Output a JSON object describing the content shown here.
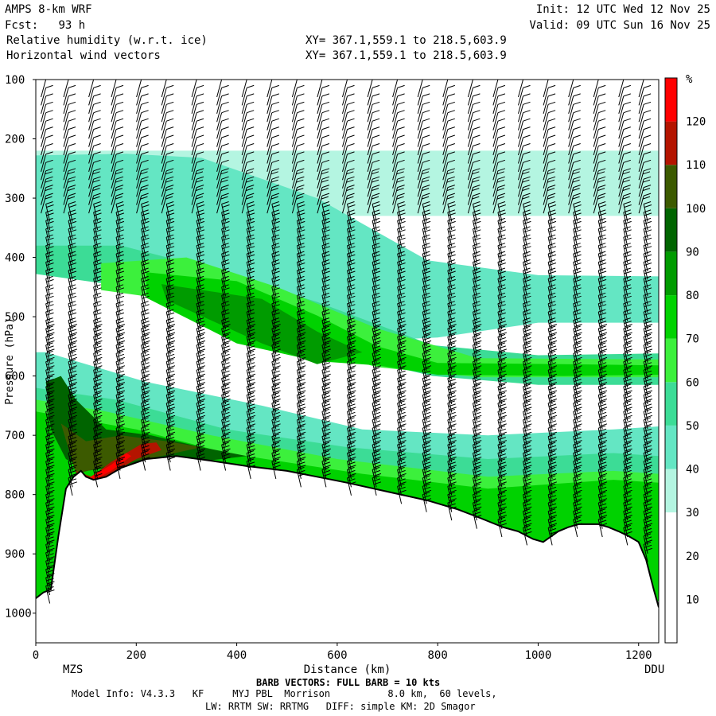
{
  "header": {
    "model": "AMPS 8-km WRF",
    "fcst_label": "Fcst:",
    "fcst_value": "93 h",
    "field1": "Relative humidity (w.r.t. ice)",
    "field2": "Horizontal wind vectors",
    "xy1": "XY= 367.1,559.1 to 218.5,603.9",
    "xy2": "XY= 367.1,559.1 to 218.5,603.9",
    "init": "Init: 12 UTC Wed 12 Nov 25",
    "valid": "Valid: 09 UTC Sun 16 Nov 25"
  },
  "footer": {
    "barb_note": "BARB VECTORS: FULL BARB = 10 kts",
    "model_info": "Model Info: V4.3.3   KF     MYJ PBL  Morrison          8.0 km,  60 levels,",
    "physics": "LW: RRTM SW: RRTMG   DIFF: simple KM: 2D Smagor"
  },
  "chart_data": {
    "type": "heatmap",
    "title": "Relative humidity (w.r.t. ice) cross-section with horizontal wind vectors",
    "xlabel": "Distance (km)",
    "ylabel": "Pressure (hPa)",
    "xlim": [
      0,
      1240
    ],
    "ylim": [
      1050,
      100
    ],
    "x_ticks": [
      0,
      200,
      400,
      600,
      800,
      1000,
      1200
    ],
    "y_ticks": [
      100,
      200,
      300,
      400,
      500,
      600,
      700,
      800,
      900,
      1000
    ],
    "endpoints": {
      "left": "MZS",
      "right": "DDU"
    },
    "colorbar": {
      "unit": "%",
      "levels": [
        10,
        20,
        30,
        40,
        50,
        60,
        70,
        80,
        90,
        100,
        110,
        120
      ],
      "colors": [
        "#ffffff",
        "#ffffff",
        "#ffffff",
        "#b4f5e1",
        "#64e6c3",
        "#3cdc96",
        "#3cf03c",
        "#00d200",
        "#009b00",
        "#006400",
        "#3c5a00",
        "#b41400",
        "#ff0000"
      ]
    },
    "terrain_hpa": [
      [
        0,
        975
      ],
      [
        15,
        965
      ],
      [
        30,
        960
      ],
      [
        45,
        870
      ],
      [
        60,
        790
      ],
      [
        75,
        770
      ],
      [
        90,
        760
      ],
      [
        100,
        770
      ],
      [
        115,
        775
      ],
      [
        140,
        770
      ],
      [
        170,
        755
      ],
      [
        220,
        740
      ],
      [
        280,
        735
      ],
      [
        350,
        743
      ],
      [
        420,
        752
      ],
      [
        500,
        760
      ],
      [
        560,
        770
      ],
      [
        620,
        780
      ],
      [
        700,
        795
      ],
      [
        780,
        810
      ],
      [
        840,
        825
      ],
      [
        880,
        838
      ],
      [
        930,
        855
      ],
      [
        960,
        862
      ],
      [
        990,
        875
      ],
      [
        1010,
        880
      ],
      [
        1040,
        862
      ],
      [
        1060,
        855
      ],
      [
        1080,
        850
      ],
      [
        1100,
        850
      ],
      [
        1120,
        850
      ],
      [
        1140,
        855
      ],
      [
        1160,
        862
      ],
      [
        1180,
        870
      ],
      [
        1200,
        880
      ],
      [
        1215,
        910
      ],
      [
        1230,
        960
      ],
      [
        1240,
        990
      ]
    ],
    "humid_layers": [
      {
        "rh": 35,
        "path_hpa": [
          [
            0,
            220
          ],
          [
            1240,
            220
          ],
          [
            1240,
            330
          ],
          [
            0,
            330
          ]
        ]
      },
      {
        "rh": 45,
        "path_hpa": [
          [
            0,
            228
          ],
          [
            180,
            225
          ],
          [
            330,
            232
          ],
          [
            560,
            300
          ],
          [
            780,
            405
          ],
          [
            1000,
            430
          ],
          [
            1240,
            432
          ],
          [
            1240,
            510
          ],
          [
            1000,
            510
          ],
          [
            800,
            535
          ],
          [
            560,
            545
          ],
          [
            350,
            495
          ],
          [
            160,
            432
          ],
          [
            0,
            418
          ]
        ]
      },
      {
        "rh": 55,
        "path_hpa": [
          [
            0,
            380
          ],
          [
            170,
            380
          ],
          [
            330,
            415
          ],
          [
            560,
            475
          ],
          [
            790,
            548
          ],
          [
            1000,
            565
          ],
          [
            1240,
            562
          ],
          [
            1240,
            615
          ],
          [
            1000,
            615
          ],
          [
            790,
            600
          ],
          [
            560,
            555
          ],
          [
            330,
            495
          ],
          [
            170,
            448
          ],
          [
            0,
            428
          ]
        ]
      },
      {
        "rh": 65,
        "path_hpa": [
          [
            130,
            410
          ],
          [
            300,
            400
          ],
          [
            480,
            450
          ],
          [
            680,
            520
          ],
          [
            880,
            570
          ],
          [
            1240,
            572
          ],
          [
            1240,
            602
          ],
          [
            880,
            602
          ],
          [
            680,
            585
          ],
          [
            480,
            540
          ],
          [
            300,
            475
          ],
          [
            130,
            455
          ]
        ]
      },
      {
        "rh": 75,
        "path_hpa": [
          [
            220,
            425
          ],
          [
            400,
            440
          ],
          [
            560,
            498
          ],
          [
            680,
            550
          ],
          [
            800,
            578
          ],
          [
            1050,
            580
          ],
          [
            1240,
            582
          ],
          [
            1240,
            598
          ],
          [
            1050,
            600
          ],
          [
            800,
            598
          ],
          [
            680,
            582
          ],
          [
            560,
            575
          ],
          [
            400,
            545
          ],
          [
            220,
            468
          ]
        ]
      },
      {
        "rh": 85,
        "path_hpa": [
          [
            250,
            445
          ],
          [
            450,
            470
          ],
          [
            560,
            525
          ],
          [
            650,
            560
          ],
          [
            560,
            580
          ],
          [
            450,
            545
          ],
          [
            260,
            472
          ]
        ]
      },
      {
        "rh": 45,
        "path_hpa": [
          [
            20,
            560
          ],
          [
            220,
            610
          ],
          [
            450,
            650
          ],
          [
            650,
            690
          ],
          [
            900,
            700
          ],
          [
            1150,
            690
          ],
          [
            1240,
            685
          ],
          [
            1240,
            980
          ],
          [
            0,
            980
          ],
          [
            0,
            560
          ]
        ]
      },
      {
        "rh": 55,
        "path_hpa": [
          [
            0,
            620
          ],
          [
            160,
            640
          ],
          [
            380,
            690
          ],
          [
            620,
            720
          ],
          [
            900,
            740
          ],
          [
            1150,
            730
          ],
          [
            1240,
            735
          ],
          [
            1240,
            980
          ],
          [
            0,
            980
          ]
        ]
      },
      {
        "rh": 65,
        "path_hpa": [
          [
            0,
            640
          ],
          [
            140,
            660
          ],
          [
            350,
            700
          ],
          [
            600,
            740
          ],
          [
            900,
            770
          ],
          [
            1150,
            760
          ],
          [
            1240,
            765
          ],
          [
            1240,
            980
          ],
          [
            0,
            980
          ]
        ]
      },
      {
        "rh": 75,
        "path_hpa": [
          [
            0,
            660
          ],
          [
            200,
            690
          ],
          [
            380,
            730
          ],
          [
            650,
            765
          ],
          [
            900,
            790
          ],
          [
            1150,
            775
          ],
          [
            1240,
            780
          ],
          [
            1240,
            980
          ],
          [
            0,
            980
          ]
        ]
      },
      {
        "rh": 95,
        "path_hpa": [
          [
            20,
            610
          ],
          [
            50,
            600
          ],
          [
            80,
            640
          ],
          [
            140,
            690
          ],
          [
            230,
            700
          ],
          [
            330,
            720
          ],
          [
            420,
            735
          ],
          [
            320,
            745
          ],
          [
            200,
            750
          ],
          [
            100,
            760
          ],
          [
            60,
            740
          ],
          [
            30,
            690
          ]
        ]
      },
      {
        "rh": 105,
        "path_hpa": [
          [
            50,
            680
          ],
          [
            100,
            710
          ],
          [
            170,
            700
          ],
          [
            260,
            710
          ],
          [
            330,
            720
          ],
          [
            250,
            735
          ],
          [
            150,
            750
          ],
          [
            80,
            765
          ]
        ]
      },
      {
        "rh": 115,
        "path_hpa": [
          [
            80,
            760
          ],
          [
            110,
            770
          ],
          [
            150,
            745
          ],
          [
            210,
            715
          ],
          [
            240,
            712
          ],
          [
            250,
            725
          ],
          [
            200,
            740
          ],
          [
            140,
            770
          ],
          [
            100,
            785
          ]
        ]
      },
      {
        "rh": 125,
        "path_hpa": [
          [
            85,
            762
          ],
          [
            105,
            772
          ],
          [
            150,
            750
          ],
          [
            180,
            730
          ],
          [
            190,
            735
          ],
          [
            150,
            760
          ],
          [
            105,
            780
          ]
        ]
      }
    ],
    "barb_columns_km": [
      20,
      65,
      115,
      160,
      210,
      260,
      320,
      370,
      420,
      470,
      520,
      570,
      620,
      670,
      720,
      770,
      820,
      870,
      920,
      970,
      1020,
      1070,
      1120,
      1170,
      1210
    ]
  }
}
